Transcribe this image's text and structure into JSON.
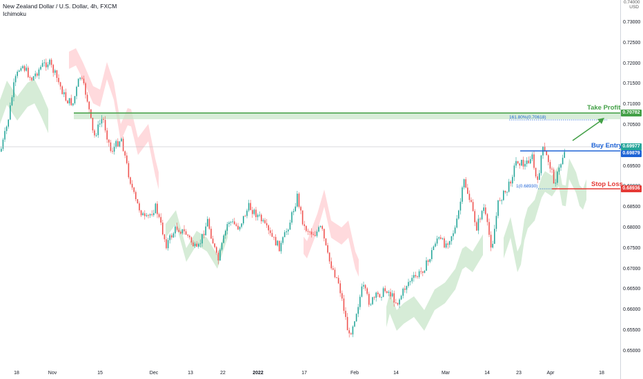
{
  "header": {
    "symbol_line": "New Zealand Dollar / U.S. Dollar, 4h, FXCM",
    "indicator": "Ichimoku"
  },
  "price_axis": {
    "currency": "USD",
    "top_label": "0.74000",
    "ticks": [
      "0.73000",
      "0.72500",
      "0.72000",
      "0.71500",
      "0.71000",
      "0.70500",
      "0.70000",
      "0.69500",
      "0.69000",
      "0.68500",
      "0.68000",
      "0.67500",
      "0.67000",
      "0.66500",
      "0.66000",
      "0.65500",
      "0.65000"
    ]
  },
  "time_axis": {
    "labels": [
      {
        "text": "18",
        "bold": false
      },
      {
        "text": "Nov",
        "bold": false
      },
      {
        "text": "15",
        "bold": false
      },
      {
        "text": "Dec",
        "bold": false
      },
      {
        "text": "13",
        "bold": false
      },
      {
        "text": "22",
        "bold": false
      },
      {
        "text": "2022",
        "bold": true
      },
      {
        "text": "17",
        "bold": false
      },
      {
        "text": "Feb",
        "bold": false
      },
      {
        "text": "14",
        "bold": false
      },
      {
        "text": "Mar",
        "bold": false
      },
      {
        "text": "14",
        "bold": false
      },
      {
        "text": "23",
        "bold": false
      },
      {
        "text": "Apr",
        "bold": false
      },
      {
        "text": "18",
        "bold": false
      }
    ]
  },
  "annotations": {
    "take_profit": {
      "label": "Take Profit",
      "price": "0.70782",
      "color": "#43a047"
    },
    "buy_entry": {
      "label": "Buy Entry",
      "price": "0.69879",
      "color": "#1e63d6"
    },
    "stop_loss": {
      "label": "Stop Loss",
      "price": "0.68936",
      "color": "#e53935"
    },
    "last_price": {
      "price": "0.69977",
      "color": "#26a69a"
    },
    "fib_target": "161.80%(0.70618)",
    "fib_base": "1(0.68930)"
  },
  "colors": {
    "up": "#26a69a",
    "down": "#ef5350",
    "cloud_bull": "#c8e6c9",
    "cloud_bear": "#ffcdd2"
  }
}
